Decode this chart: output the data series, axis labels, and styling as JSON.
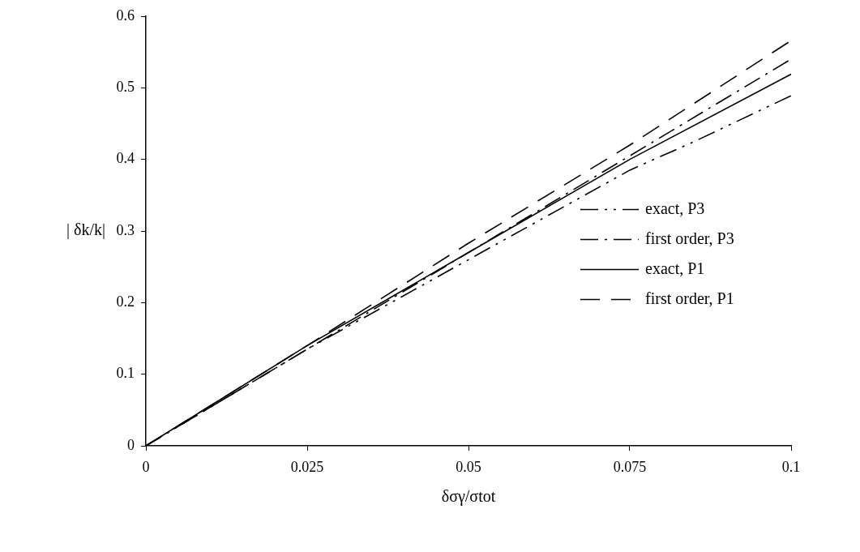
{
  "chart_data": {
    "type": "line",
    "xlabel": "δσγ/σtot",
    "ylabel": "| δk/k|",
    "x": [
      0,
      0.025,
      0.05,
      0.075,
      0.1
    ],
    "xlim": [
      0,
      0.1
    ],
    "xticks": [
      0,
      0.025,
      0.05,
      0.075,
      0.1
    ],
    "ylim": [
      0,
      0.6
    ],
    "yticks": [
      0,
      0.1,
      0.2,
      0.3,
      0.4,
      0.5,
      0.6
    ],
    "grid": false,
    "legend": "right",
    "marker": "none",
    "series": [
      {
        "name": "exact, P3",
        "color": "#000000",
        "line_style": "dashed",
        "x": [
          0,
          0.025,
          0.05,
          0.075,
          0.085,
          0.1
        ],
        "values": [
          0,
          0.135,
          0.26,
          0.385,
          0.425,
          0.489
        ]
      },
      {
        "name": "first order, P3",
        "color": "#000000",
        "line_style": "dashed",
        "values": [
          0,
          0.135,
          0.27,
          0.405,
          0.54
        ]
      },
      {
        "name": "exact, P1",
        "color": "#000000",
        "line_style": "solid",
        "values": [
          0,
          0.14,
          0.27,
          0.4,
          0.519
        ]
      },
      {
        "name": "first order, P1",
        "color": "#000000",
        "line_style": "dashed",
        "values": [
          0,
          0.14,
          0.283,
          0.42,
          0.566
        ]
      }
    ]
  }
}
